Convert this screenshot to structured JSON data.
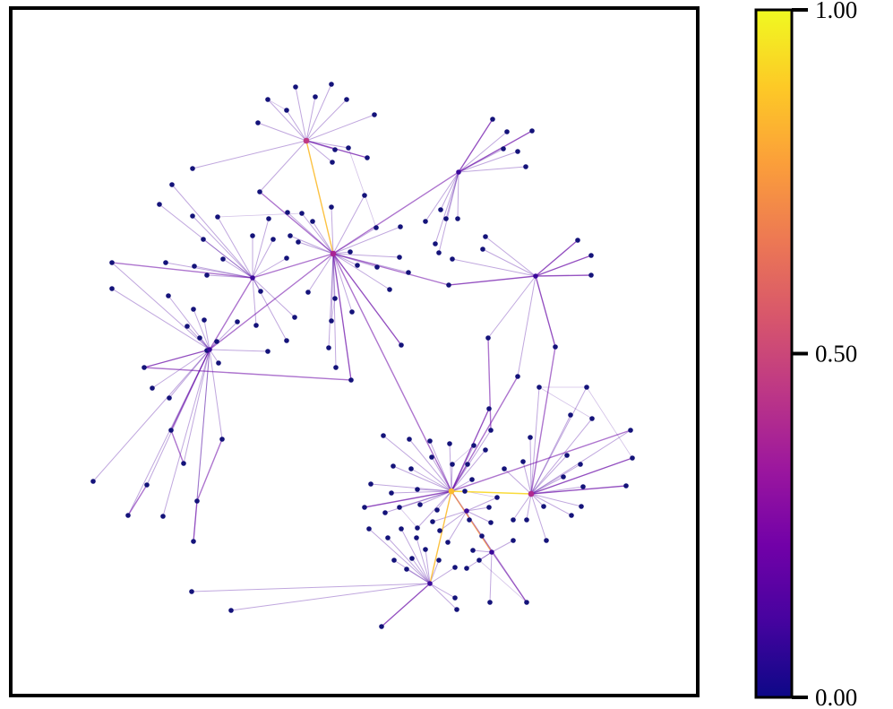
{
  "chart_data": {
    "type": "network-graph",
    "colorbar": {
      "ticks": [
        {
          "value": 0.0,
          "label": "0.00"
        },
        {
          "value": 0.5,
          "label": "0.50"
        },
        {
          "value": 1.0,
          "label": "1.00"
        }
      ],
      "colormap": [
        "#0d0887",
        "#46039f",
        "#7201a8",
        "#9c179e",
        "#bd3786",
        "#d8576b",
        "#ed7953",
        "#fb9f3a",
        "#fdca26",
        "#f0f921"
      ]
    },
    "node_color": "#14137a",
    "hubs": [
      {
        "id": "hub-1",
        "value": 0.45
      },
      {
        "id": "hub-2",
        "value": 0.38
      },
      {
        "id": "hub-3",
        "value": 0.85
      },
      {
        "id": "hub-4",
        "value": 0.4
      }
    ],
    "highlighted_edges": [
      {
        "from": "hub-1",
        "to": "hub-2",
        "value": 0.85
      },
      {
        "from": "hub-3",
        "to": "hub-4",
        "value": 0.9
      },
      {
        "from": "hub-3",
        "to": "n-lower",
        "value": 0.85
      }
    ]
  }
}
